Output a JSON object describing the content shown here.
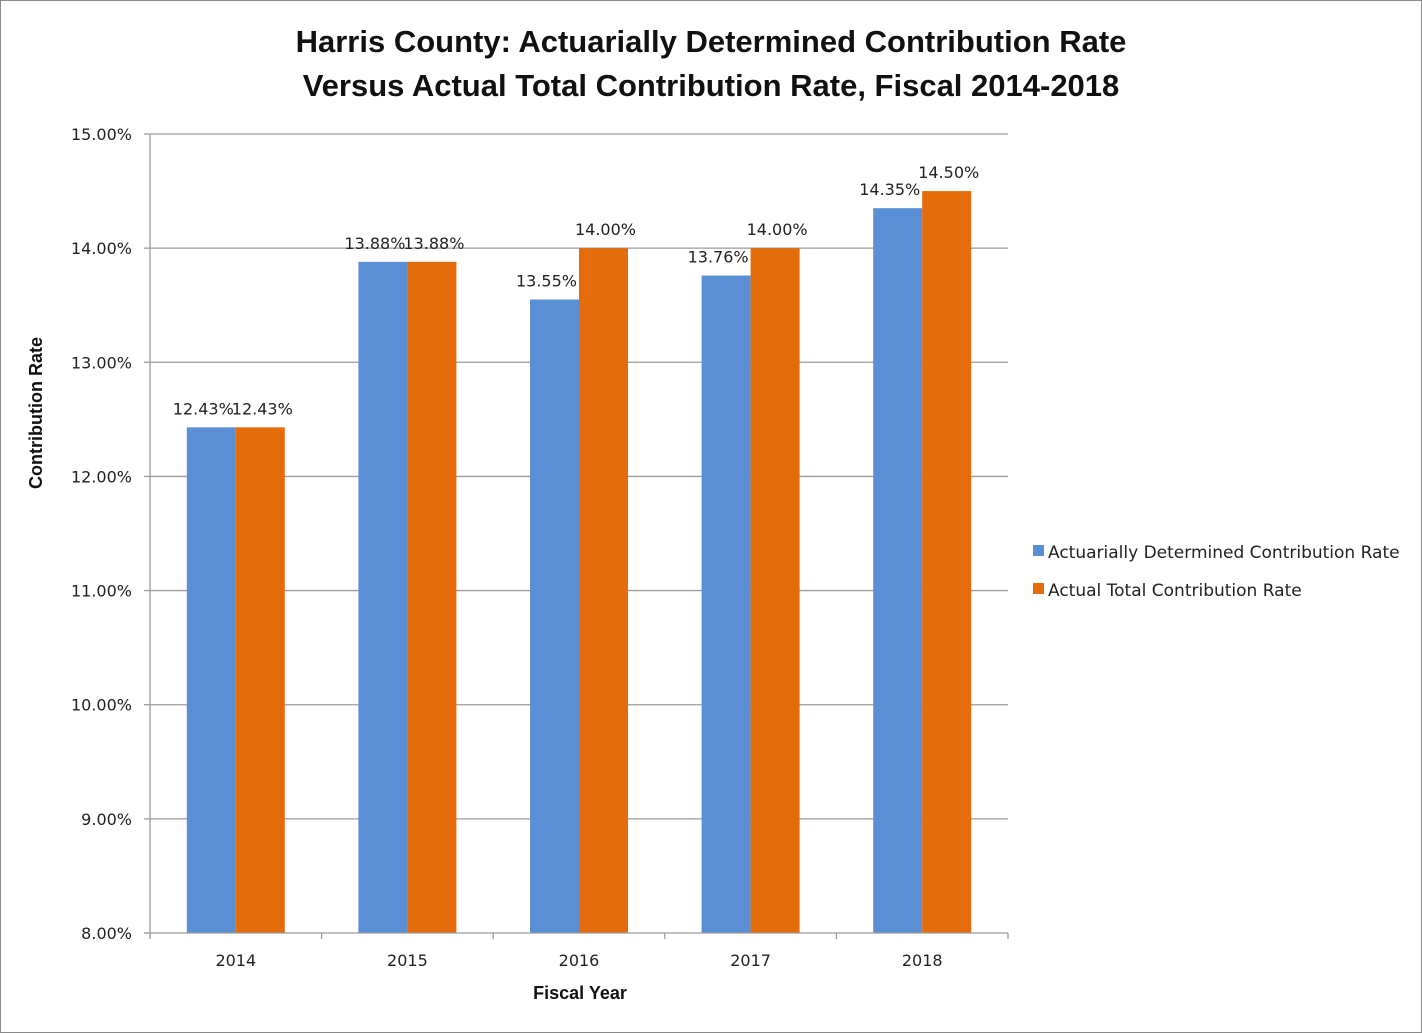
{
  "chart_data": {
    "type": "bar",
    "title_lines": [
      "Harris County: Actuarially Determined Contribution Rate",
      "Versus Actual Total Contribution Rate, Fiscal 2014-2018"
    ],
    "xlabel": "Fiscal Year",
    "ylabel": "Contribution Rate",
    "categories": [
      "2014",
      "2015",
      "2016",
      "2017",
      "2018"
    ],
    "ylim": [
      8.0,
      15.0
    ],
    "ytick_step": 1.0,
    "ytick_labels": [
      "8.00%",
      "9.00%",
      "10.00%",
      "11.00%",
      "12.00%",
      "13.00%",
      "14.00%",
      "15.00%"
    ],
    "grid": true,
    "legend_position": "right",
    "series": [
      {
        "name": "Actuarially Determined Contribution Rate",
        "color": "#5a8fd6",
        "values": [
          12.43,
          13.88,
          13.55,
          13.76,
          14.35
        ],
        "labels": [
          "12.43%",
          "13.88%",
          "13.55%",
          "13.76%",
          "14.35%"
        ]
      },
      {
        "name": "Actual Total Contribution Rate",
        "color": "#e46c0a",
        "values": [
          12.43,
          13.88,
          14.0,
          14.0,
          14.5
        ],
        "labels": [
          "12.43%",
          "13.88%",
          "14.00%",
          "14.00%",
          "14.50%"
        ]
      }
    ]
  }
}
